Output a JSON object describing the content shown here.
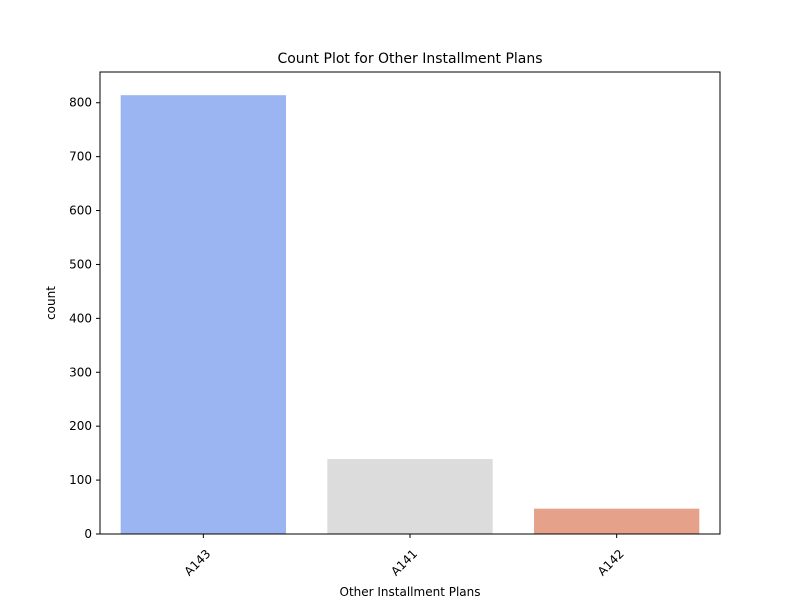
{
  "chart_data": {
    "type": "bar",
    "title": "Count Plot for Other Installment Plans",
    "xlabel": "Other Installment Plans",
    "ylabel": "count",
    "categories": [
      "A143",
      "A141",
      "A142"
    ],
    "values": [
      814,
      139,
      47
    ],
    "colors": [
      "#9ab5f1",
      "#dcdcdc",
      "#e5a18a"
    ],
    "ylim": [
      0,
      857
    ],
    "yticks": [
      0,
      100,
      200,
      300,
      400,
      500,
      600,
      700,
      800
    ],
    "ytick_labels": [
      "0",
      "100",
      "200",
      "300",
      "400",
      "500",
      "600",
      "700",
      "800"
    ],
    "xtick_rotation_deg": 45,
    "grid": false,
    "legend": false
  }
}
